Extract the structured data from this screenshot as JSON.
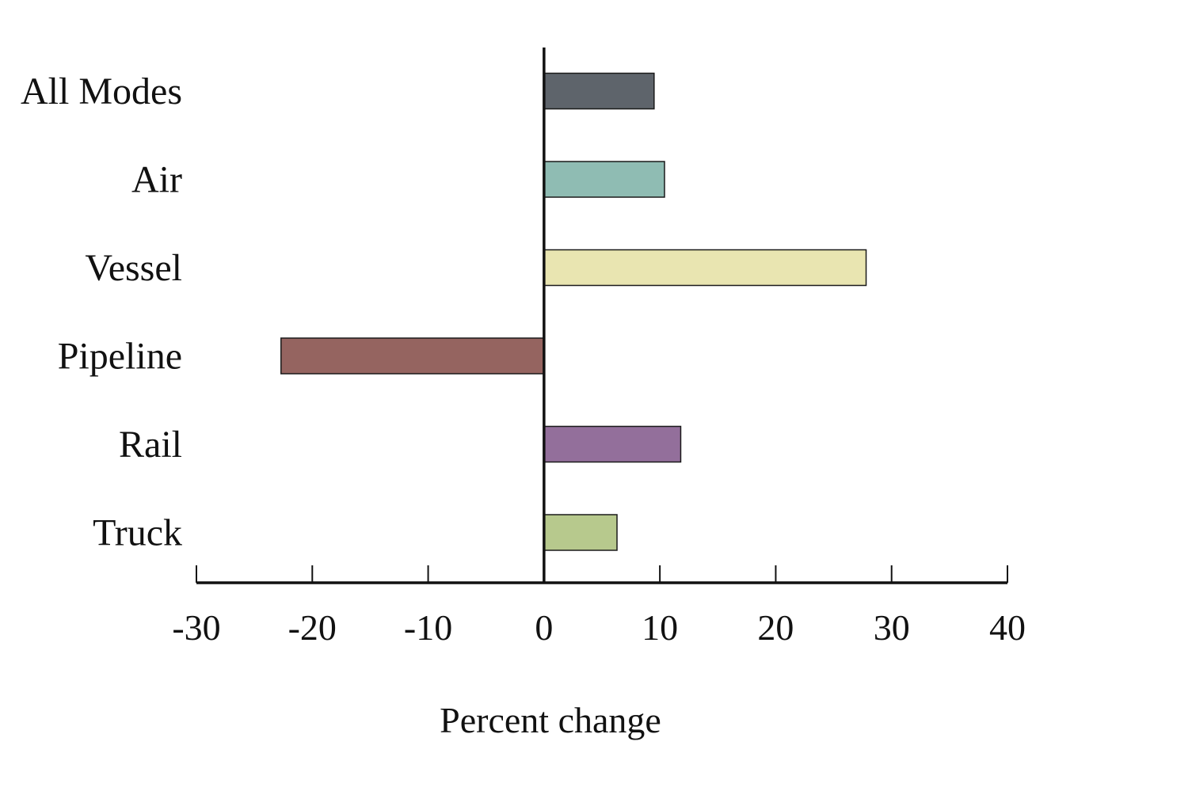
{
  "chart_data": {
    "type": "bar",
    "orientation": "horizontal",
    "categories": [
      "All Modes",
      "Air",
      "Vessel",
      "Pipeline",
      "Rail",
      "Truck"
    ],
    "values": [
      9.5,
      10.4,
      27.8,
      -22.7,
      11.8,
      6.3
    ],
    "colors": [
      "#5e646b",
      "#8fbcb3",
      "#e9e5b1",
      "#956460",
      "#936f9b",
      "#b7c98d"
    ],
    "xlabel": "Percent change",
    "ylabel": "",
    "title": "",
    "xlim": [
      -30,
      40
    ],
    "xticks": [
      -30,
      -20,
      -10,
      0,
      10,
      20,
      30,
      40
    ],
    "xtick_labels": [
      "-30",
      "-20",
      "-10",
      "0",
      "10",
      "20",
      "30",
      "40"
    ],
    "grid": false,
    "legend": "none"
  }
}
